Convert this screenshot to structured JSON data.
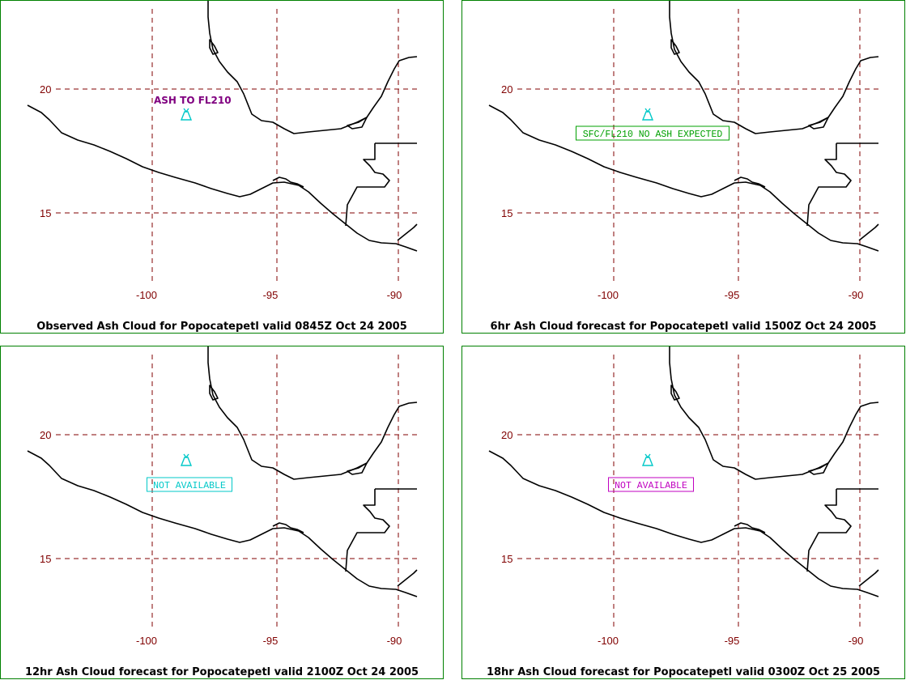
{
  "panels": [
    {
      "caption": "Observed Ash Cloud for Popocatepetl valid 0845Z Oct 24 2005",
      "note": "ASH TO FL210",
      "note_style": "plain",
      "note_color": "#800080"
    },
    {
      "caption": "6hr Ash Cloud forecast for Popocatepetl valid 1500Z Oct 24 2005",
      "note": "SFC/FL210 NO ASH EXPECTED",
      "note_style": "boxed",
      "note_color": "#00a000"
    },
    {
      "caption": "12hr Ash Cloud forecast for Popocatepetl valid 2100Z Oct 24 2005",
      "note": "NOT AVAILABLE",
      "note_style": "boxed",
      "note_color": "#00c8c8"
    },
    {
      "caption": "18hr Ash Cloud forecast for Popocatepetl valid 0300Z Oct 25 2005",
      "note": "NOT AVAILABLE",
      "note_style": "boxed",
      "note_color": "#c000c0"
    }
  ],
  "axes": {
    "lat_labels": [
      "20",
      "15"
    ],
    "lon_labels": [
      "-100",
      "-95",
      "-90"
    ]
  },
  "colors": {
    "panel_border": "#008000",
    "grid": "#800000",
    "tick_labels": "#800000",
    "coastline": "#000000",
    "volcano_icon": "#00c8c8"
  },
  "icons": {
    "volcano": "volcano-icon"
  }
}
